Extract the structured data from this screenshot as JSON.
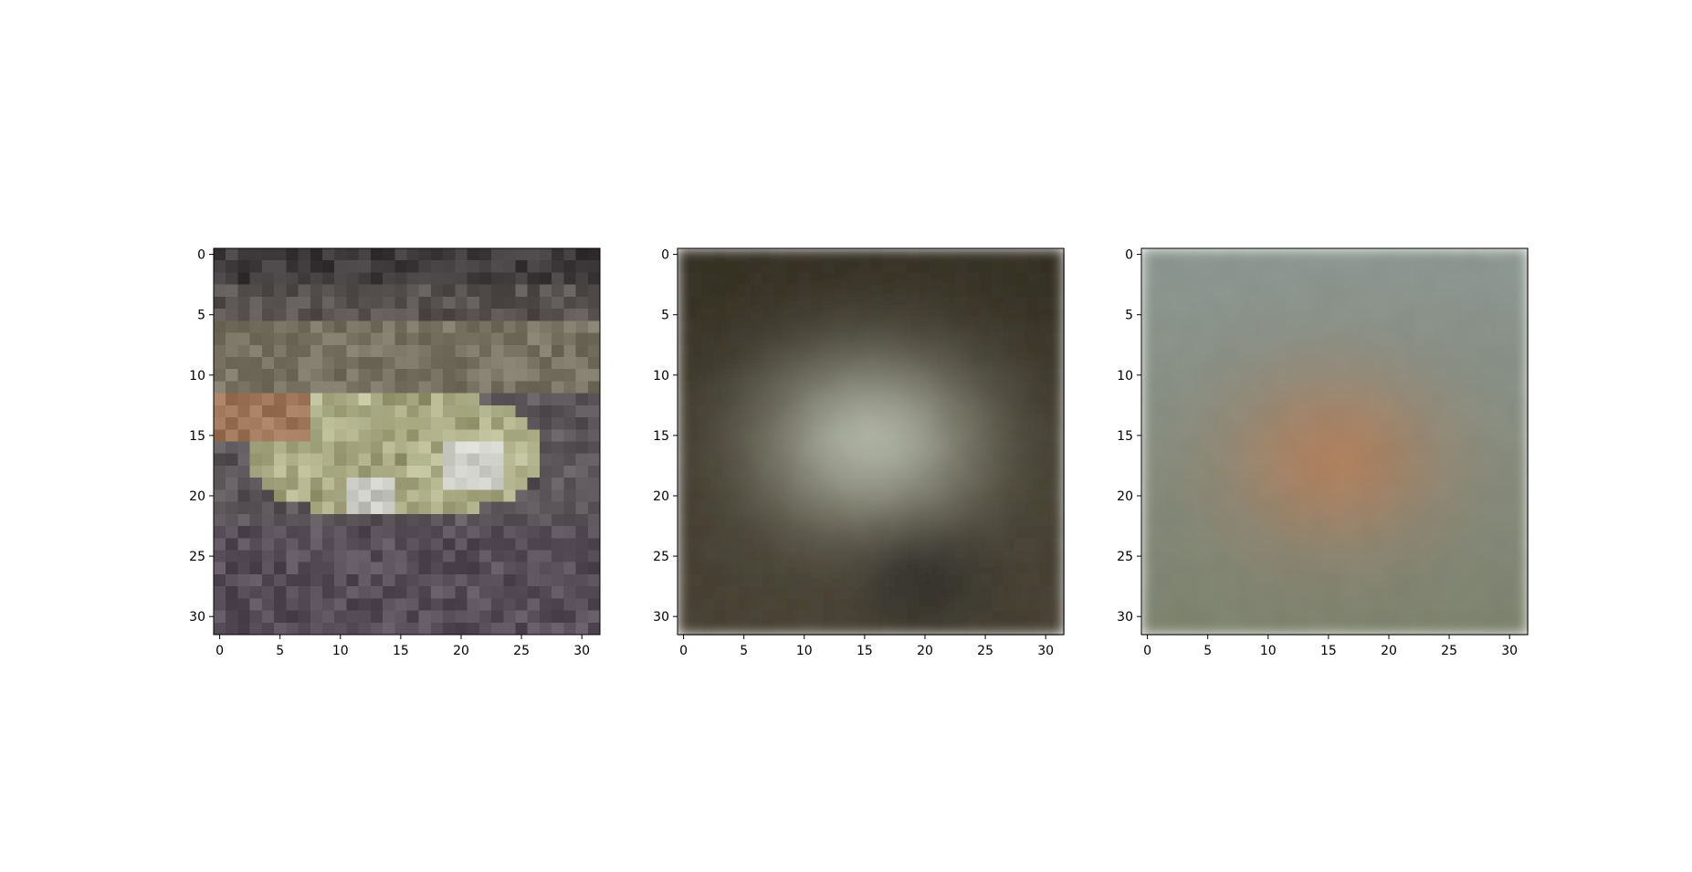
{
  "figure": {
    "background": "#ffffff",
    "panels": [
      {
        "content": "pixelated photo of a frog-like green/yellow animal on brown purple ground",
        "grid": 32,
        "style": "pixelated",
        "xticks": [
          "0",
          "5",
          "10",
          "15",
          "20",
          "25",
          "30"
        ],
        "yticks": [
          "0",
          "5",
          "10",
          "15",
          "20",
          "25",
          "30"
        ]
      },
      {
        "content": "blurry reconstruction: dark olive border with light grey-green central blob",
        "grid": 32,
        "style": "smooth",
        "xticks": [
          "0",
          "5",
          "10",
          "15",
          "20",
          "25",
          "30"
        ],
        "yticks": [
          "0",
          "5",
          "10",
          "15",
          "20",
          "25",
          "30"
        ]
      },
      {
        "content": "blurry reconstruction: grey-green background with orange-brown central blob",
        "grid": 32,
        "style": "smooth",
        "xticks": [
          "0",
          "5",
          "10",
          "15",
          "20",
          "25",
          "30"
        ],
        "yticks": [
          "0",
          "5",
          "10",
          "15",
          "20",
          "25",
          "30"
        ]
      }
    ]
  }
}
